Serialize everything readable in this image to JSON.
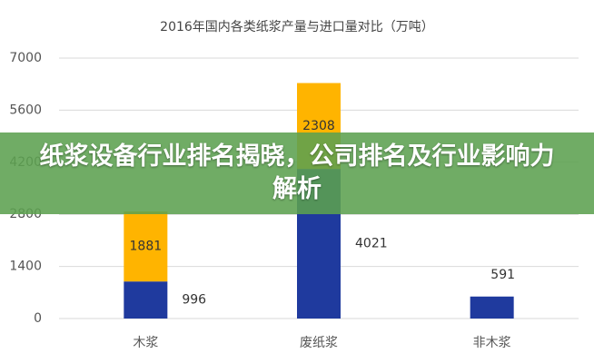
{
  "chart_data": {
    "type": "stacked-bar",
    "title": "2016年国内各类纸浆产量与进口量对比（万吨）",
    "categories": [
      "木浆",
      "废纸浆",
      "非木浆"
    ],
    "series": [
      {
        "color": "#1f3a9e",
        "values": [
          996,
          4021,
          591
        ]
      },
      {
        "color": "#ffb400",
        "values": [
          1881,
          2308,
          null
        ]
      }
    ],
    "ylim": [
      0,
      7000
    ],
    "yticks": [
      0,
      1400,
      2800,
      4200,
      5600,
      7000
    ],
    "grid": true
  },
  "banner": {
    "text": "纸浆设备行业排名揭晓，公司排名及行业影响力解析"
  }
}
